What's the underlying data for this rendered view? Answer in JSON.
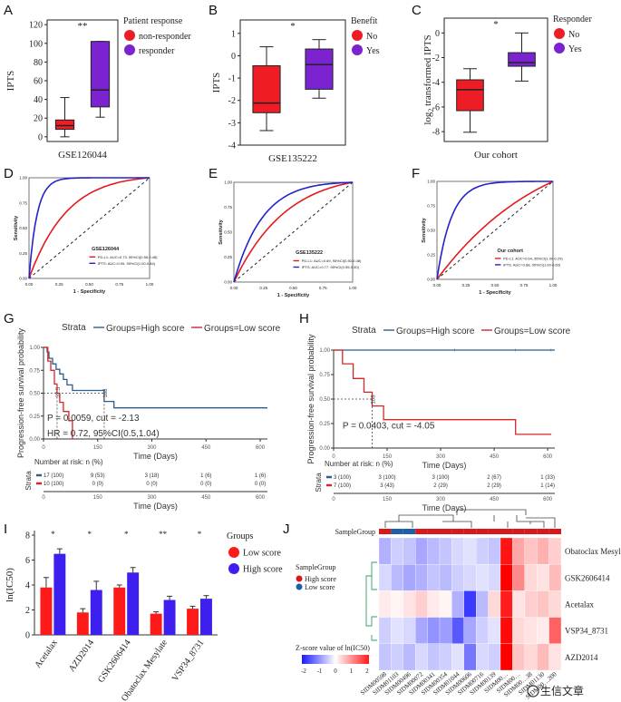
{
  "panel_letters": [
    "A",
    "B",
    "C",
    "D",
    "E",
    "F",
    "G",
    "H",
    "I",
    "J"
  ],
  "watermark": "生信文章",
  "chart_data": [
    {
      "panel": "A",
      "type": "box",
      "xlabel": "GSE126044",
      "ylabel": "IPTS",
      "ylim": [
        -5,
        125
      ],
      "yticks": [
        "0",
        "20",
        "40",
        "60",
        "80",
        "100",
        "120"
      ],
      "significance": "**",
      "legend": {
        "title": "Patient response",
        "position": "top-right",
        "items": [
          {
            "label": "non-responder",
            "color": "#ee1c25"
          },
          {
            "label": "responder",
            "color": "#7b22d1"
          }
        ]
      },
      "series": [
        {
          "name": "non-responder",
          "color": "#ee1c25",
          "min": 0,
          "q1": 8,
          "median": 12,
          "q3": 18,
          "max": 42
        },
        {
          "name": "responder",
          "color": "#7b22d1",
          "min": 21,
          "q1": 32,
          "median": 50,
          "q3": 102,
          "max": 102
        }
      ]
    },
    {
      "panel": "B",
      "type": "box",
      "xlabel": "GSE135222",
      "ylabel": "IPTS",
      "ylim": [
        -4,
        1.6
      ],
      "yticks": [
        "-4",
        "-3",
        "-2",
        "-1",
        "0",
        "1"
      ],
      "significance": "*",
      "legend": {
        "title": "Benefit",
        "position": "top-right",
        "items": [
          {
            "label": "No",
            "color": "#ee1c25"
          },
          {
            "label": "Yes",
            "color": "#7b22d1"
          }
        ]
      },
      "series": [
        {
          "name": "No",
          "color": "#ee1c25",
          "min": -3.35,
          "q1": -2.55,
          "median": -2.12,
          "q3": -0.45,
          "max": 0.4
        },
        {
          "name": "Yes",
          "color": "#7b22d1",
          "min": -1.9,
          "q1": -1.5,
          "median": -0.4,
          "q3": 0.3,
          "max": 0.72
        }
      ]
    },
    {
      "panel": "C",
      "type": "box",
      "xlabel": "Our cohort",
      "ylabel": "log2 transformed IPTS",
      "ylim": [
        -8.8,
        1.2
      ],
      "yticks": [
        "-8",
        "-6",
        "-4",
        "-2",
        "0"
      ],
      "significance": "*",
      "legend": {
        "title": "Responder",
        "position": "top-right",
        "items": [
          {
            "label": "No",
            "color": "#ee1c25"
          },
          {
            "label": "Yes",
            "color": "#7b22d1"
          }
        ]
      },
      "series": [
        {
          "name": "No",
          "color": "#ee1c25",
          "min": -8.05,
          "q1": -6.3,
          "median": -4.6,
          "q3": -3.8,
          "max": -2.9
        },
        {
          "name": "Yes",
          "color": "#7b22d1",
          "min": -3.9,
          "q1": -2.7,
          "median": -2.4,
          "q3": -1.6,
          "max": 0
        }
      ]
    },
    {
      "panel": "D",
      "type": "line",
      "title": "GSE126044",
      "xlabel": "1 - Specificity",
      "ylabel": "Sensitivity",
      "xticks": [
        "0.00",
        "0.25",
        "0.50",
        "0.75",
        "1.00"
      ],
      "yticks": [
        "0.00",
        "0.25",
        "0.50",
        "0.75",
        "1.00"
      ],
      "series": [
        {
          "name": "PD-L1: AUC=0.73, 95%CI(0.56-0.48)",
          "color": "#e41a1c",
          "k": 2.3
        },
        {
          "name": "IPTS: AUC=0.95, 95%CI(1.00-0.84)",
          "color": "#2323c8",
          "k": 14
        }
      ]
    },
    {
      "panel": "E",
      "type": "line",
      "title": "GSE135222",
      "xlabel": "1 - Specificity",
      "ylabel": "Sensitivity",
      "xticks": [
        "0.00",
        "0.25",
        "0.50",
        "0.75",
        "1.00"
      ],
      "yticks": [
        "0.00",
        "0.25",
        "0.50",
        "0.75",
        "1.00"
      ],
      "series": [
        {
          "name": "PD-L1: AUC=0.69, 95%CI(0.50-0.48)",
          "color": "#e41a1c",
          "k": 1.5
        },
        {
          "name": "IPTS: AUC=0.77, 95%CI(0.55-0.50)",
          "color": "#2323c8",
          "k": 3.2
        }
      ]
    },
    {
      "panel": "F",
      "type": "line",
      "title": "Our cohort",
      "xlabel": "1 - Specificity",
      "ylabel": "Sensitivity",
      "xticks": [
        "0.00",
        "0.25",
        "0.50",
        "0.75",
        "1.00"
      ],
      "yticks": [
        "0.00",
        "0.25",
        "0.50",
        "0.75",
        "1.00"
      ],
      "series": [
        {
          "name": "PD-L1: AUC=0.64, 95%CI(1.00-0.29)",
          "color": "#e41a1c",
          "k": 0.6
        },
        {
          "name": "IPTS: AUC=0.88, 95%CI(1.00-0.60)",
          "color": "#2323c8",
          "k": 7
        }
      ]
    },
    {
      "panel": "G",
      "type": "line",
      "legend": {
        "title": "Strata",
        "items": [
          {
            "label": "Groups=High score",
            "color": "#2a5f8e"
          },
          {
            "label": "Groups=Low score",
            "color": "#d62728"
          }
        ]
      },
      "xlabel": "Time (Days)",
      "ylabel": "Progression-free survival probability",
      "xticks": [
        "0",
        "150",
        "300",
        "450",
        "600"
      ],
      "yticks": [
        "0.00",
        "0.25",
        "0.50",
        "0.75",
        "1.00"
      ],
      "annotations": [
        "P = 0.0059, cut = -2.13",
        "HR = 0.72, 95%CI(0.5,1.04)",
        "37.5",
        "168"
      ],
      "series": [
        {
          "name": "Groups=High score",
          "color": "#2a5f8e",
          "x": [
            0,
            10,
            15,
            25,
            35,
            45,
            55,
            65,
            80,
            100,
            120,
            168,
            195,
            620
          ],
          "y": [
            1.0,
            0.95,
            0.88,
            0.82,
            0.76,
            0.71,
            0.65,
            0.59,
            0.53,
            0.53,
            0.53,
            0.41,
            0.34,
            0.34
          ]
        },
        {
          "name": "Groups=Low score",
          "color": "#d62728",
          "x": [
            0,
            12,
            20,
            30,
            37.5,
            45,
            55,
            70,
            80
          ],
          "y": [
            1.0,
            0.85,
            0.75,
            0.6,
            0.5,
            0.4,
            0.3,
            0.2,
            0.0
          ]
        }
      ],
      "risk_table": {
        "title": "Number at risk: n (%)",
        "strata_label": "Strata",
        "xlabel": "Time (Days)",
        "rows": [
          {
            "color": "#2a5f8e",
            "values": [
              "17 (100)",
              "9 (53)",
              "3 (18)",
              "1 (6)",
              "1 (6)"
            ]
          },
          {
            "color": "#d62728",
            "values": [
              "10 (100)",
              "0 (0)",
              "0 (0)",
              "0 (0)",
              "0 (0)"
            ]
          }
        ]
      }
    },
    {
      "panel": "H",
      "type": "line",
      "legend": {
        "title": "Strata",
        "items": [
          {
            "label": "Groups=High score",
            "color": "#2a5f8e"
          },
          {
            "label": "Groups=Low score",
            "color": "#d62728"
          }
        ]
      },
      "xlabel": "Time (Days)",
      "ylabel": "Progression-free survival probability",
      "xticks": [
        "0",
        "150",
        "300",
        "450",
        "600"
      ],
      "yticks": [
        "0.00",
        "0.25",
        "0.50",
        "0.75",
        "1.00"
      ],
      "annotations": [
        "P = 0.0403, cut = -4.05",
        "108"
      ],
      "series": [
        {
          "name": "Groups=High score",
          "color": "#2a5f8e",
          "x": [
            0,
            620
          ],
          "y": [
            1.0,
            1.0
          ]
        },
        {
          "name": "Groups=Low score",
          "color": "#d62728",
          "x": [
            0,
            25,
            55,
            85,
            108,
            140,
            310,
            330,
            510,
            610
          ],
          "y": [
            1.0,
            0.86,
            0.71,
            0.57,
            0.43,
            0.29,
            0.29,
            0.29,
            0.14,
            0.14
          ]
        }
      ],
      "risk_table": {
        "title": "Number at risk: n (%)",
        "strata_label": "Strata",
        "xlabel": "Time (Days)",
        "rows": [
          {
            "color": "#2a5f8e",
            "values": [
              "3 (100)",
              "3 (100)",
              "3 (100)",
              "2 (67)",
              "1 (33)"
            ]
          },
          {
            "color": "#d62728",
            "values": [
              "7 (100)",
              "3 (43)",
              "2 (29)",
              "2 (29)",
              "1 (14)"
            ]
          }
        ]
      }
    },
    {
      "panel": "I",
      "type": "bar",
      "ylabel": "ln(IC50)",
      "ylim": [
        0,
        8
      ],
      "yticks": [
        "0",
        "2",
        "4",
        "6",
        "8"
      ],
      "categories": [
        "Acetalax",
        "AZD2014",
        "GSK2606414",
        "Obatoclax Mesylate",
        "VSP34_8731"
      ],
      "significance": [
        "*",
        "*",
        "*",
        "**",
        "*"
      ],
      "legend": {
        "title": "Groups",
        "position": "top-right"
      },
      "series": [
        {
          "name": "Low score",
          "color": "#ff1a1a",
          "values": [
            3.8,
            1.8,
            3.8,
            1.7,
            2.1
          ],
          "errors": [
            0.8,
            0.3,
            0.2,
            0.15,
            0.2
          ]
        },
        {
          "name": "High score",
          "color": "#3d1ff0",
          "values": [
            6.5,
            3.6,
            5.0,
            2.8,
            2.9
          ],
          "errors": [
            0.4,
            0.7,
            0.4,
            0.3,
            0.25
          ]
        }
      ]
    },
    {
      "panel": "J",
      "type": "heatmap",
      "annotation_label": "SampleGroup",
      "legend": {
        "title": "SampleGroup",
        "items": [
          {
            "label": "High score",
            "color": "#d7191c"
          },
          {
            "label": "Low score",
            "color": "#1f5fa8"
          }
        ]
      },
      "colorbar": {
        "title": "Z-score value of ln(IC50)",
        "ticks": [
          "-2",
          "-1",
          "0",
          "1",
          "2"
        ]
      },
      "rows": [
        "Obatoclax Mesylate",
        "GSK2606414",
        "Acetalax",
        "VSP34_8731",
        "AZD2014"
      ],
      "columns": [
        "SIDM00598",
        "SIDM01103",
        "SIDM00496",
        "SIDM00072",
        "SIDM00341",
        "SIDM00354",
        "SIDM01044",
        "SIDM00606",
        "SIDM00716",
        "SIDM00139",
        "SIDM00…",
        "SIDM00…",
        "SIDM00…38",
        "SIDM01130",
        "SIDM00…200"
      ],
      "column_groups": [
        "High score",
        "Low score",
        "Low score",
        "High score",
        "High score",
        "High score",
        "High score",
        "High score",
        "High score",
        "High score",
        "High score",
        "High score",
        "High score",
        "High score",
        "High score"
      ],
      "values": [
        [
          -0.8,
          -0.5,
          -0.6,
          -0.9,
          -0.7,
          -0.6,
          -0.4,
          -0.3,
          -0.5,
          -0.6,
          2.4,
          0.9,
          0.6,
          0.8,
          0.5
        ],
        [
          -0.4,
          -0.7,
          -0.9,
          -0.8,
          -0.6,
          -0.7,
          -0.5,
          -0.4,
          -0.3,
          -0.4,
          2.6,
          1.2,
          0.4,
          0.3,
          0.7
        ],
        [
          0.2,
          0.1,
          0.3,
          0.5,
          0.2,
          0.1,
          -0.8,
          -2.0,
          -0.7,
          0.4,
          2.3,
          0.3,
          0.5,
          0.6,
          0.4
        ],
        [
          -0.5,
          -0.3,
          -0.4,
          -0.9,
          -1.1,
          -1.0,
          -1.7,
          -0.9,
          -0.5,
          -0.3,
          2.5,
          0.4,
          0.3,
          0.2,
          1.6
        ],
        [
          -0.6,
          -0.5,
          -0.7,
          -0.4,
          -0.6,
          -0.5,
          -0.3,
          -1.4,
          -0.4,
          -0.5,
          2.7,
          0.6,
          0.4,
          0.7,
          0.3
        ]
      ]
    }
  ]
}
